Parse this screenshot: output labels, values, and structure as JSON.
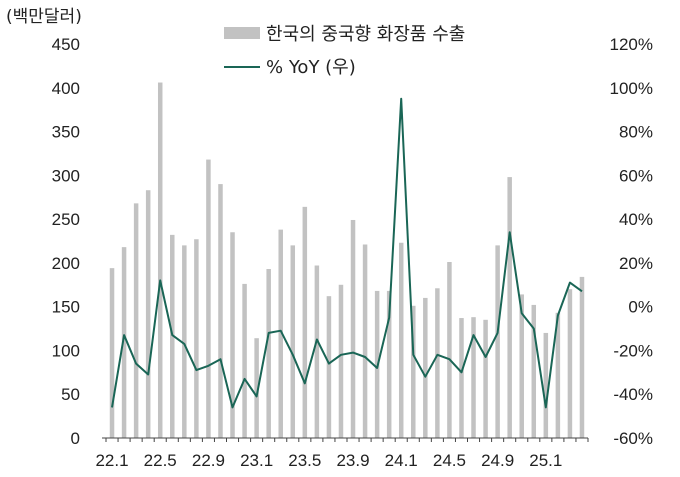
{
  "chart_data": {
    "type": "bar",
    "unit_label": "(백만달러)",
    "colors": {
      "bar": "#c2c2c2",
      "line": "#1a6656",
      "axis": "#444444"
    },
    "x": [
      "22.1",
      "22.2",
      "22.3",
      "22.4",
      "22.5",
      "22.6",
      "22.7",
      "22.8",
      "22.9",
      "22.10",
      "22.11",
      "22.12",
      "23.1",
      "23.2",
      "23.3",
      "23.4",
      "23.5",
      "23.6",
      "23.7",
      "23.8",
      "23.9",
      "23.10",
      "23.11",
      "23.12",
      "24.1",
      "24.2",
      "24.3",
      "24.4",
      "24.5",
      "24.6",
      "24.7",
      "24.8",
      "24.9",
      "24.10",
      "24.11",
      "24.12",
      "25.1",
      "25.2",
      "25.3",
      "25.4"
    ],
    "x_tick_labels": [
      "22.1",
      "22.5",
      "22.9",
      "23.1",
      "23.5",
      "23.9",
      "24.1",
      "24.5",
      "24.9",
      "25.1"
    ],
    "x_tick_indices": [
      0,
      4,
      8,
      12,
      16,
      20,
      24,
      28,
      32,
      36
    ],
    "series": [
      {
        "name": "한국의 중국향 화장품 수출",
        "kind": "bar",
        "axis": "left",
        "values": [
          194,
          218,
          268,
          283,
          406,
          232,
          220,
          227,
          318,
          290,
          235,
          176,
          114,
          193,
          238,
          220,
          264,
          197,
          162,
          175,
          249,
          221,
          168,
          168,
          223,
          151,
          160,
          171,
          201,
          137,
          138,
          135,
          220,
          298,
          164,
          152,
          120,
          143,
          170,
          184
        ]
      },
      {
        "name": "% YoY (우)",
        "kind": "line",
        "axis": "right",
        "values": [
          -46,
          -13,
          -26,
          -31,
          12,
          -13,
          -17,
          -29,
          -27,
          -24,
          -46,
          -33,
          -41,
          -12,
          -11,
          -22,
          -35,
          -15,
          -26,
          -22,
          -21,
          -23,
          -28,
          -5,
          95,
          -22,
          -32,
          -22,
          -24,
          -30,
          -13,
          -23,
          -12,
          34,
          -3,
          -10,
          -46,
          -4,
          11,
          7
        ]
      }
    ],
    "y_left": {
      "min": 0,
      "max": 450,
      "ticks": [
        "0",
        "50",
        "100",
        "150",
        "200",
        "250",
        "300",
        "350",
        "400",
        "450"
      ]
    },
    "y_right": {
      "min": -60,
      "max": 120,
      "ticks": [
        "-60%",
        "-40%",
        "-20%",
        "0%",
        "20%",
        "40%",
        "60%",
        "80%",
        "100%",
        "120%"
      ]
    },
    "legend_position": "top-center",
    "grid": false
  }
}
